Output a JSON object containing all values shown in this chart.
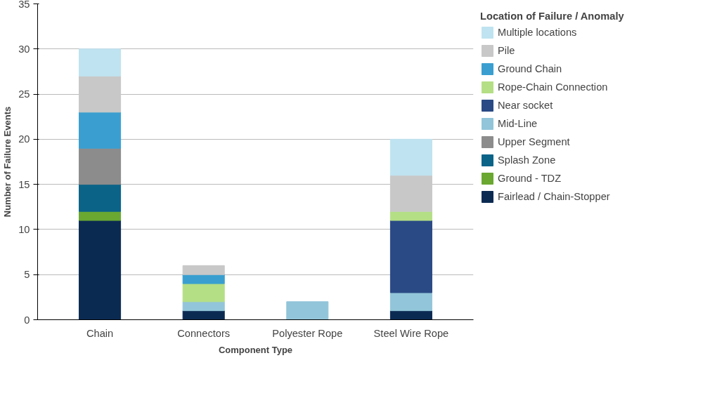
{
  "chart_data": {
    "type": "bar",
    "stacked": true,
    "xlabel": "Component Type",
    "ylabel": "Number of Failure Events",
    "legend_title": "Location of Failure / Anomaly",
    "legend": "right",
    "grid": "y",
    "categories": [
      "Chain",
      "Connectors",
      "Polyester Rope",
      "Steel Wire Rope"
    ],
    "ylim": [
      0,
      35
    ],
    "yticks": [
      0,
      5,
      10,
      15,
      20,
      25,
      30,
      35
    ],
    "series": [
      {
        "name": "Fairlead / Chain-Stopper",
        "color": "#0b2a52",
        "values": [
          11,
          1,
          0,
          1
        ]
      },
      {
        "name": "Ground - TDZ",
        "color": "#6aa832",
        "values": [
          1,
          0,
          0,
          0
        ]
      },
      {
        "name": "Splash Zone",
        "color": "#0b6388",
        "values": [
          3,
          0,
          0,
          0
        ]
      },
      {
        "name": "Upper Segment",
        "color": "#8c8c8c",
        "values": [
          4,
          0,
          0,
          0
        ]
      },
      {
        "name": "Mid-Line",
        "color": "#92c5d9",
        "values": [
          0,
          1,
          2,
          2
        ]
      },
      {
        "name": "Near socket",
        "color": "#2a4a85",
        "values": [
          0,
          0,
          0,
          8
        ]
      },
      {
        "name": "Rope-Chain Connection",
        "color": "#b5df85",
        "values": [
          0,
          2,
          0,
          1
        ]
      },
      {
        "name": "Ground Chain",
        "color": "#3a9fd0",
        "values": [
          4,
          1,
          0,
          0
        ]
      },
      {
        "name": "Pile",
        "color": "#c8c8c8",
        "values": [
          4,
          1,
          0,
          4
        ]
      },
      {
        "name": "Multiple locations",
        "color": "#bfe3f0",
        "values": [
          3,
          0,
          0,
          4
        ]
      }
    ]
  }
}
